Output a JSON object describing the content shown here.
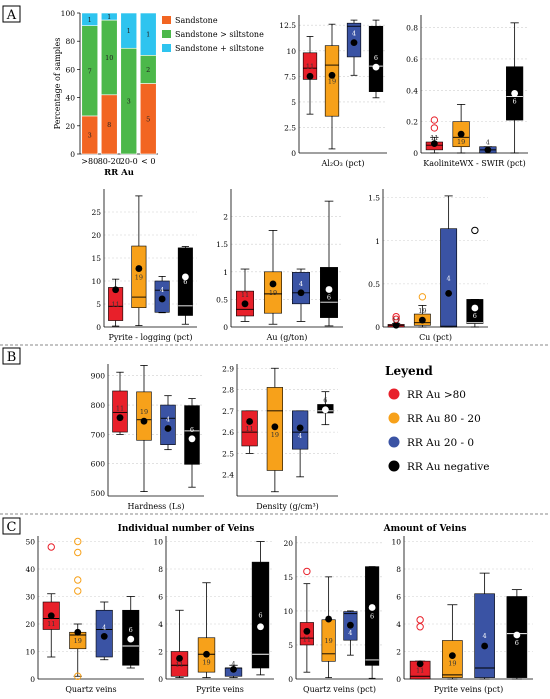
{
  "panels": [
    "A",
    "B",
    "C"
  ],
  "colors": {
    "red": "#e8202a",
    "orange": "#f7a11a",
    "blue": "#3a53a4",
    "black": "#000000",
    "sandstone": "#f26522",
    "sand_silt": "#4cb84a",
    "sand_plus_silt": "#2ec4ef"
  },
  "legend": {
    "title": "Leyend",
    "items": [
      {
        "label": "RR Au >80",
        "color": "#e8202a"
      },
      {
        "label": "RR Au 80 - 20",
        "color": "#f7a11a"
      },
      {
        "label": "RR Au 20 - 0",
        "color": "#3a53a4"
      },
      {
        "label": "RR Au negative",
        "color": "#000000"
      }
    ]
  },
  "section_titles": {
    "veins_number": "Individual number of Veins",
    "veins_amount": "Amount of Veins"
  },
  "chart_data": [
    {
      "id": "lithology",
      "type": "bar",
      "stacked": true,
      "ylabel": "Percentage of samples",
      "xlabel": "RR Au",
      "categories": [
        ">80",
        "80-20",
        "20-0",
        "< 0"
      ],
      "ylim": [
        0,
        100
      ],
      "yticks": [
        0,
        20,
        40,
        60,
        80,
        100
      ],
      "legend_position": "right",
      "series": [
        {
          "name": "Sandstone",
          "color": "#f26522",
          "values": [
            27,
            42,
            0,
            50
          ],
          "labels": [
            "3",
            "8",
            "",
            "5"
          ]
        },
        {
          "name": "Sandstone > siltstone",
          "color": "#4cb84a",
          "values": [
            64,
            53,
            75,
            20
          ],
          "labels": [
            "7",
            "10",
            "3",
            "2"
          ]
        },
        {
          "name": "Sandstone + siltstone",
          "color": "#2ec4ef",
          "values": [
            9,
            5,
            25,
            30
          ],
          "labels": [
            "1",
            "1",
            "1",
            "1"
          ]
        }
      ]
    },
    {
      "id": "al2o3",
      "type": "box",
      "xlabel": "Al₂O₃ (pct)",
      "ylim": [
        0,
        13.5
      ],
      "yticks": [
        "0",
        "2.5",
        "5",
        "7.5",
        "10",
        "12.5"
      ],
      "boxes": [
        {
          "min": 3.8,
          "q1": 7.2,
          "median": 8.3,
          "q3": 9.8,
          "max": 11.4,
          "mean": 7.5,
          "n": "11",
          "outliers": []
        },
        {
          "min": 0.4,
          "q1": 3.6,
          "median": 8.6,
          "q3": 10.5,
          "max": 12.6,
          "mean": 7.6,
          "n": "19",
          "outliers": []
        },
        {
          "min": 7.6,
          "q1": 9.4,
          "median": 12.4,
          "q3": 12.7,
          "max": 13.0,
          "mean": 10.8,
          "n": "4",
          "outliers": []
        },
        {
          "min": 5.4,
          "q1": 6.0,
          "median": 8.5,
          "q3": 12.4,
          "max": 13.0,
          "mean": 8.4,
          "n": "6",
          "outliers": []
        }
      ]
    },
    {
      "id": "kaolinite",
      "type": "box",
      "xlabel": "KaoliniteWX - SWIR (pct)",
      "ylim": [
        0,
        0.88
      ],
      "yticks": [
        "0",
        "0.2",
        "0.4",
        "0.6",
        "0.8"
      ],
      "boxes": [
        {
          "min": 0.0,
          "q1": 0.02,
          "median": 0.05,
          "q3": 0.07,
          "max": 0.1,
          "mean": 0.06,
          "n": "11",
          "outliers": [
            0.16,
            0.21
          ]
        },
        {
          "min": 0.0,
          "q1": 0.04,
          "median": 0.1,
          "q3": 0.2,
          "max": 0.31,
          "mean": 0.12,
          "n": "19",
          "outliers": []
        },
        {
          "min": 0.0,
          "q1": 0.0,
          "median": 0.02,
          "q3": 0.04,
          "max": 0.04,
          "mean": 0.02,
          "n": "4",
          "outliers": []
        },
        {
          "min": 0.0,
          "q1": 0.21,
          "median": 0.36,
          "q3": 0.55,
          "max": 0.83,
          "mean": 0.38,
          "n": "6",
          "outliers": []
        }
      ]
    },
    {
      "id": "pyrite_logging",
      "type": "box",
      "xlabel": "Pyrite - logging (pct)",
      "ylim": [
        0,
        30
      ],
      "yticks": [
        "0",
        "5",
        "10",
        "15",
        "20",
        "25"
      ],
      "boxes": [
        {
          "min": 0.2,
          "q1": 1.4,
          "median": 4.5,
          "q3": 8.6,
          "max": 10.4,
          "mean": 8.1,
          "n": "11",
          "outliers": []
        },
        {
          "min": 0.3,
          "q1": 4.2,
          "median": 6.5,
          "q3": 17.6,
          "max": 28.5,
          "mean": 12.7,
          "n": "19",
          "outliers": []
        },
        {
          "min": 3.1,
          "q1": 3.2,
          "median": 8.0,
          "q3": 10.0,
          "max": 11.0,
          "mean": 6.1,
          "n": "4",
          "outliers": []
        },
        {
          "min": 0.6,
          "q1": 2.5,
          "median": 4.6,
          "q3": 17.2,
          "max": 17.5,
          "mean": 10.9,
          "n": "6",
          "outliers": []
        }
      ]
    },
    {
      "id": "au",
      "type": "box",
      "xlabel": "Au (g/ton)",
      "ylim": [
        0,
        2.5
      ],
      "yticks": [
        "0",
        "0.5",
        "1",
        "1.5",
        "2"
      ],
      "boxes": [
        {
          "min": 0.1,
          "q1": 0.2,
          "median": 0.32,
          "q3": 0.65,
          "max": 1.05,
          "mean": 0.42,
          "n": "11",
          "outliers": []
        },
        {
          "min": 0.05,
          "q1": 0.25,
          "median": 0.6,
          "q3": 1.0,
          "max": 1.75,
          "mean": 0.78,
          "n": "19",
          "outliers": []
        },
        {
          "min": 0.1,
          "q1": 0.42,
          "median": 0.62,
          "q3": 0.99,
          "max": 1.05,
          "mean": 0.62,
          "n": "4",
          "outliers": []
        },
        {
          "min": 0.02,
          "q1": 0.17,
          "median": 0.45,
          "q3": 1.08,
          "max": 2.28,
          "mean": 0.68,
          "n": "6",
          "outliers": []
        }
      ]
    },
    {
      "id": "cu",
      "type": "box",
      "xlabel": "Cu (pct)",
      "ylim": [
        0,
        1.6
      ],
      "yticks": [
        "0",
        "0.5",
        "1",
        "1.5"
      ],
      "boxes": [
        {
          "min": 0.0,
          "q1": 0.0,
          "median": 0.02,
          "q3": 0.03,
          "max": 0.04,
          "mean": 0.02,
          "n": "11",
          "outliers": [
            0.09,
            0.12
          ]
        },
        {
          "min": 0.0,
          "q1": 0.02,
          "median": 0.05,
          "q3": 0.15,
          "max": 0.25,
          "mean": 0.08,
          "n": "19",
          "outliers": [
            0.35
          ]
        },
        {
          "min": 0.0,
          "q1": 0.0,
          "median": 0.01,
          "q3": 1.14,
          "max": 1.52,
          "mean": 0.39,
          "n": "4",
          "outliers": []
        },
        {
          "min": 0.0,
          "q1": 0.04,
          "median": 0.05,
          "q3": 0.32,
          "max": 0.32,
          "mean": 0.22,
          "n": "6",
          "outliers": [
            1.12
          ]
        }
      ]
    },
    {
      "id": "hardness",
      "type": "box",
      "xlabel": "Hardness (Ls)",
      "ylim": [
        490,
        940
      ],
      "yticks": [
        "500",
        "600",
        "700",
        "800",
        "900"
      ],
      "boxes": [
        {
          "min": 700,
          "q1": 708,
          "median": 775,
          "q3": 848,
          "max": 912,
          "mean": 757,
          "n": "11",
          "outliers": []
        },
        {
          "min": 505,
          "q1": 680,
          "median": 750,
          "q3": 845,
          "max": 935,
          "mean": 745,
          "n": "19",
          "outliers": []
        },
        {
          "min": 648,
          "q1": 665,
          "median": 755,
          "q3": 800,
          "max": 832,
          "mean": 720,
          "n": "4",
          "outliers": []
        },
        {
          "min": 520,
          "q1": 598,
          "median": 712,
          "q3": 798,
          "max": 822,
          "mean": 685,
          "n": "6",
          "outliers": []
        }
      ]
    },
    {
      "id": "density",
      "type": "box",
      "xlabel": "Density (g/cm³)",
      "ylim": [
        2.3,
        2.92
      ],
      "yticks": [
        "2.4",
        "2.5",
        "2.6",
        "2.7",
        "2.8",
        "2.9"
      ],
      "boxes": [
        {
          "min": 2.5,
          "q1": 2.535,
          "median": 2.6,
          "q3": 2.7,
          "max": 2.7,
          "mean": 2.65,
          "n": "11",
          "outliers": []
        },
        {
          "min": 2.32,
          "q1": 2.42,
          "median": 2.7,
          "q3": 2.81,
          "max": 2.9,
          "mean": 2.625,
          "n": "19",
          "outliers": []
        },
        {
          "min": 2.39,
          "q1": 2.52,
          "median": 2.6,
          "q3": 2.7,
          "max": 2.7,
          "mean": 2.62,
          "n": "4",
          "outliers": []
        },
        {
          "min": 2.635,
          "q1": 2.69,
          "median": 2.7,
          "q3": 2.73,
          "max": 2.79,
          "mean": 2.705,
          "n": "6",
          "outliers": []
        }
      ]
    },
    {
      "id": "quartz_number",
      "type": "box",
      "xlabel": "Quartz veins",
      "ylim": [
        0,
        52
      ],
      "yticks": [
        "0",
        "10",
        "20",
        "30",
        "40",
        "50"
      ],
      "boxes": [
        {
          "min": 8,
          "q1": 18,
          "median": 22,
          "q3": 28,
          "max": 31,
          "mean": 23,
          "n": "11",
          "outliers": [
            48
          ]
        },
        {
          "min": 1,
          "q1": 11,
          "median": 16,
          "q3": 17,
          "max": 20,
          "mean": 17,
          "n": "19",
          "outliers": [
            50,
            46,
            36,
            32,
            1
          ]
        },
        {
          "min": 7,
          "q1": 8,
          "median": 18,
          "q3": 25,
          "max": 28,
          "mean": 15.5,
          "n": "4",
          "outliers": []
        },
        {
          "min": 4,
          "q1": 5,
          "median": 12,
          "q3": 25,
          "max": 30,
          "mean": 14.5,
          "n": "6",
          "outliers": []
        }
      ]
    },
    {
      "id": "pyrite_number",
      "type": "box",
      "xlabel": "Pyrite veins",
      "ylim": [
        0,
        10.4
      ],
      "yticks": [
        "0",
        "2",
        "4",
        "6",
        "8",
        "10"
      ],
      "boxes": [
        {
          "min": 0.1,
          "q1": 0.2,
          "median": 1.0,
          "q3": 2.0,
          "max": 5.0,
          "mean": 1.5,
          "n": "11",
          "outliers": []
        },
        {
          "min": 0.1,
          "q1": 0.5,
          "median": 1.8,
          "q3": 3.0,
          "max": 7.0,
          "mean": 1.8,
          "n": "19",
          "outliers": []
        },
        {
          "min": 0.1,
          "q1": 0.2,
          "median": 0.8,
          "q3": 0.8,
          "max": 1.0,
          "mean": 0.7,
          "n": "4",
          "outliers": []
        },
        {
          "min": 0.3,
          "q1": 0.8,
          "median": 1.8,
          "q3": 8.5,
          "max": 10.0,
          "mean": 3.8,
          "n": "6",
          "outliers": []
        }
      ]
    },
    {
      "id": "quartz_amount",
      "type": "box",
      "xlabel": "Quartz veins (pct)",
      "ylim": [
        0,
        21
      ],
      "yticks": [
        "0",
        "5",
        "10",
        "15",
        "20"
      ],
      "boxes": [
        {
          "min": 1,
          "q1": 5,
          "median": 6,
          "q3": 8.3,
          "max": 14,
          "mean": 7,
          "n": "11",
          "outliers": [
            15.8
          ]
        },
        {
          "min": 0.2,
          "q1": 2.6,
          "median": 3.7,
          "q3": 8.7,
          "max": 15,
          "mean": 8.8,
          "n": "19",
          "outliers": []
        },
        {
          "min": 3.5,
          "q1": 5.7,
          "median": 9.6,
          "q3": 9.9,
          "max": 10,
          "mean": 7.9,
          "n": "4",
          "outliers": []
        },
        {
          "min": 0.1,
          "q1": 2.0,
          "median": 2.8,
          "q3": 16.5,
          "max": 16.5,
          "mean": 10.5,
          "n": "6",
          "outliers": []
        }
      ]
    },
    {
      "id": "pyrite_amount",
      "type": "box",
      "xlabel": "Pyrite veins (pct)",
      "ylim": [
        0,
        10.4
      ],
      "yticks": [
        "0",
        "2",
        "4",
        "6",
        "8",
        "10"
      ],
      "boxes": [
        {
          "min": 0.0,
          "q1": 0.0,
          "median": 0.2,
          "q3": 1.3,
          "max": 1.3,
          "mean": 1.1,
          "n": "11",
          "outliers": [
            3.8,
            4.3
          ]
        },
        {
          "min": 0.0,
          "q1": 0.1,
          "median": 0.3,
          "q3": 2.8,
          "max": 5.4,
          "mean": 1.7,
          "n": "19",
          "outliers": []
        },
        {
          "min": 0.0,
          "q1": 0.1,
          "median": 0.8,
          "q3": 6.2,
          "max": 7.7,
          "mean": 2.4,
          "n": "4",
          "outliers": []
        },
        {
          "min": 0.0,
          "q1": 0.1,
          "median": 3.3,
          "q3": 6.0,
          "max": 6.5,
          "mean": 3.2,
          "n": "6",
          "outliers": []
        }
      ]
    }
  ]
}
